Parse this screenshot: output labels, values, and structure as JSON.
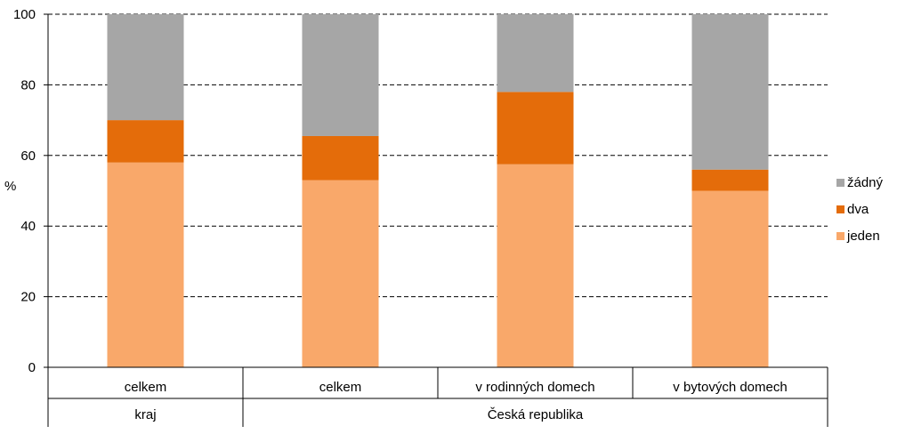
{
  "chart_data": {
    "type": "bar",
    "stacked": true,
    "ylabel": "%",
    "ylim": [
      0,
      100
    ],
    "yticks": [
      0,
      20,
      40,
      60,
      80,
      100
    ],
    "grid": true,
    "legend_position": "right",
    "categories": [
      "celkem",
      "celkem",
      "v rodinných domech",
      "v bytových domech"
    ],
    "groups": [
      {
        "label": "kraj",
        "span": 1
      },
      {
        "label": "Česká republika",
        "span": 3
      }
    ],
    "series": [
      {
        "name": "jeden",
        "color": "#F9A86A",
        "values": [
          58,
          53,
          57.5,
          50
        ]
      },
      {
        "name": "dva",
        "color": "#E46C0A",
        "values": [
          12,
          12.5,
          20.5,
          6
        ]
      },
      {
        "name": "žádný",
        "color": "#A6A6A6",
        "values": [
          30,
          34.5,
          22,
          44
        ]
      }
    ]
  }
}
